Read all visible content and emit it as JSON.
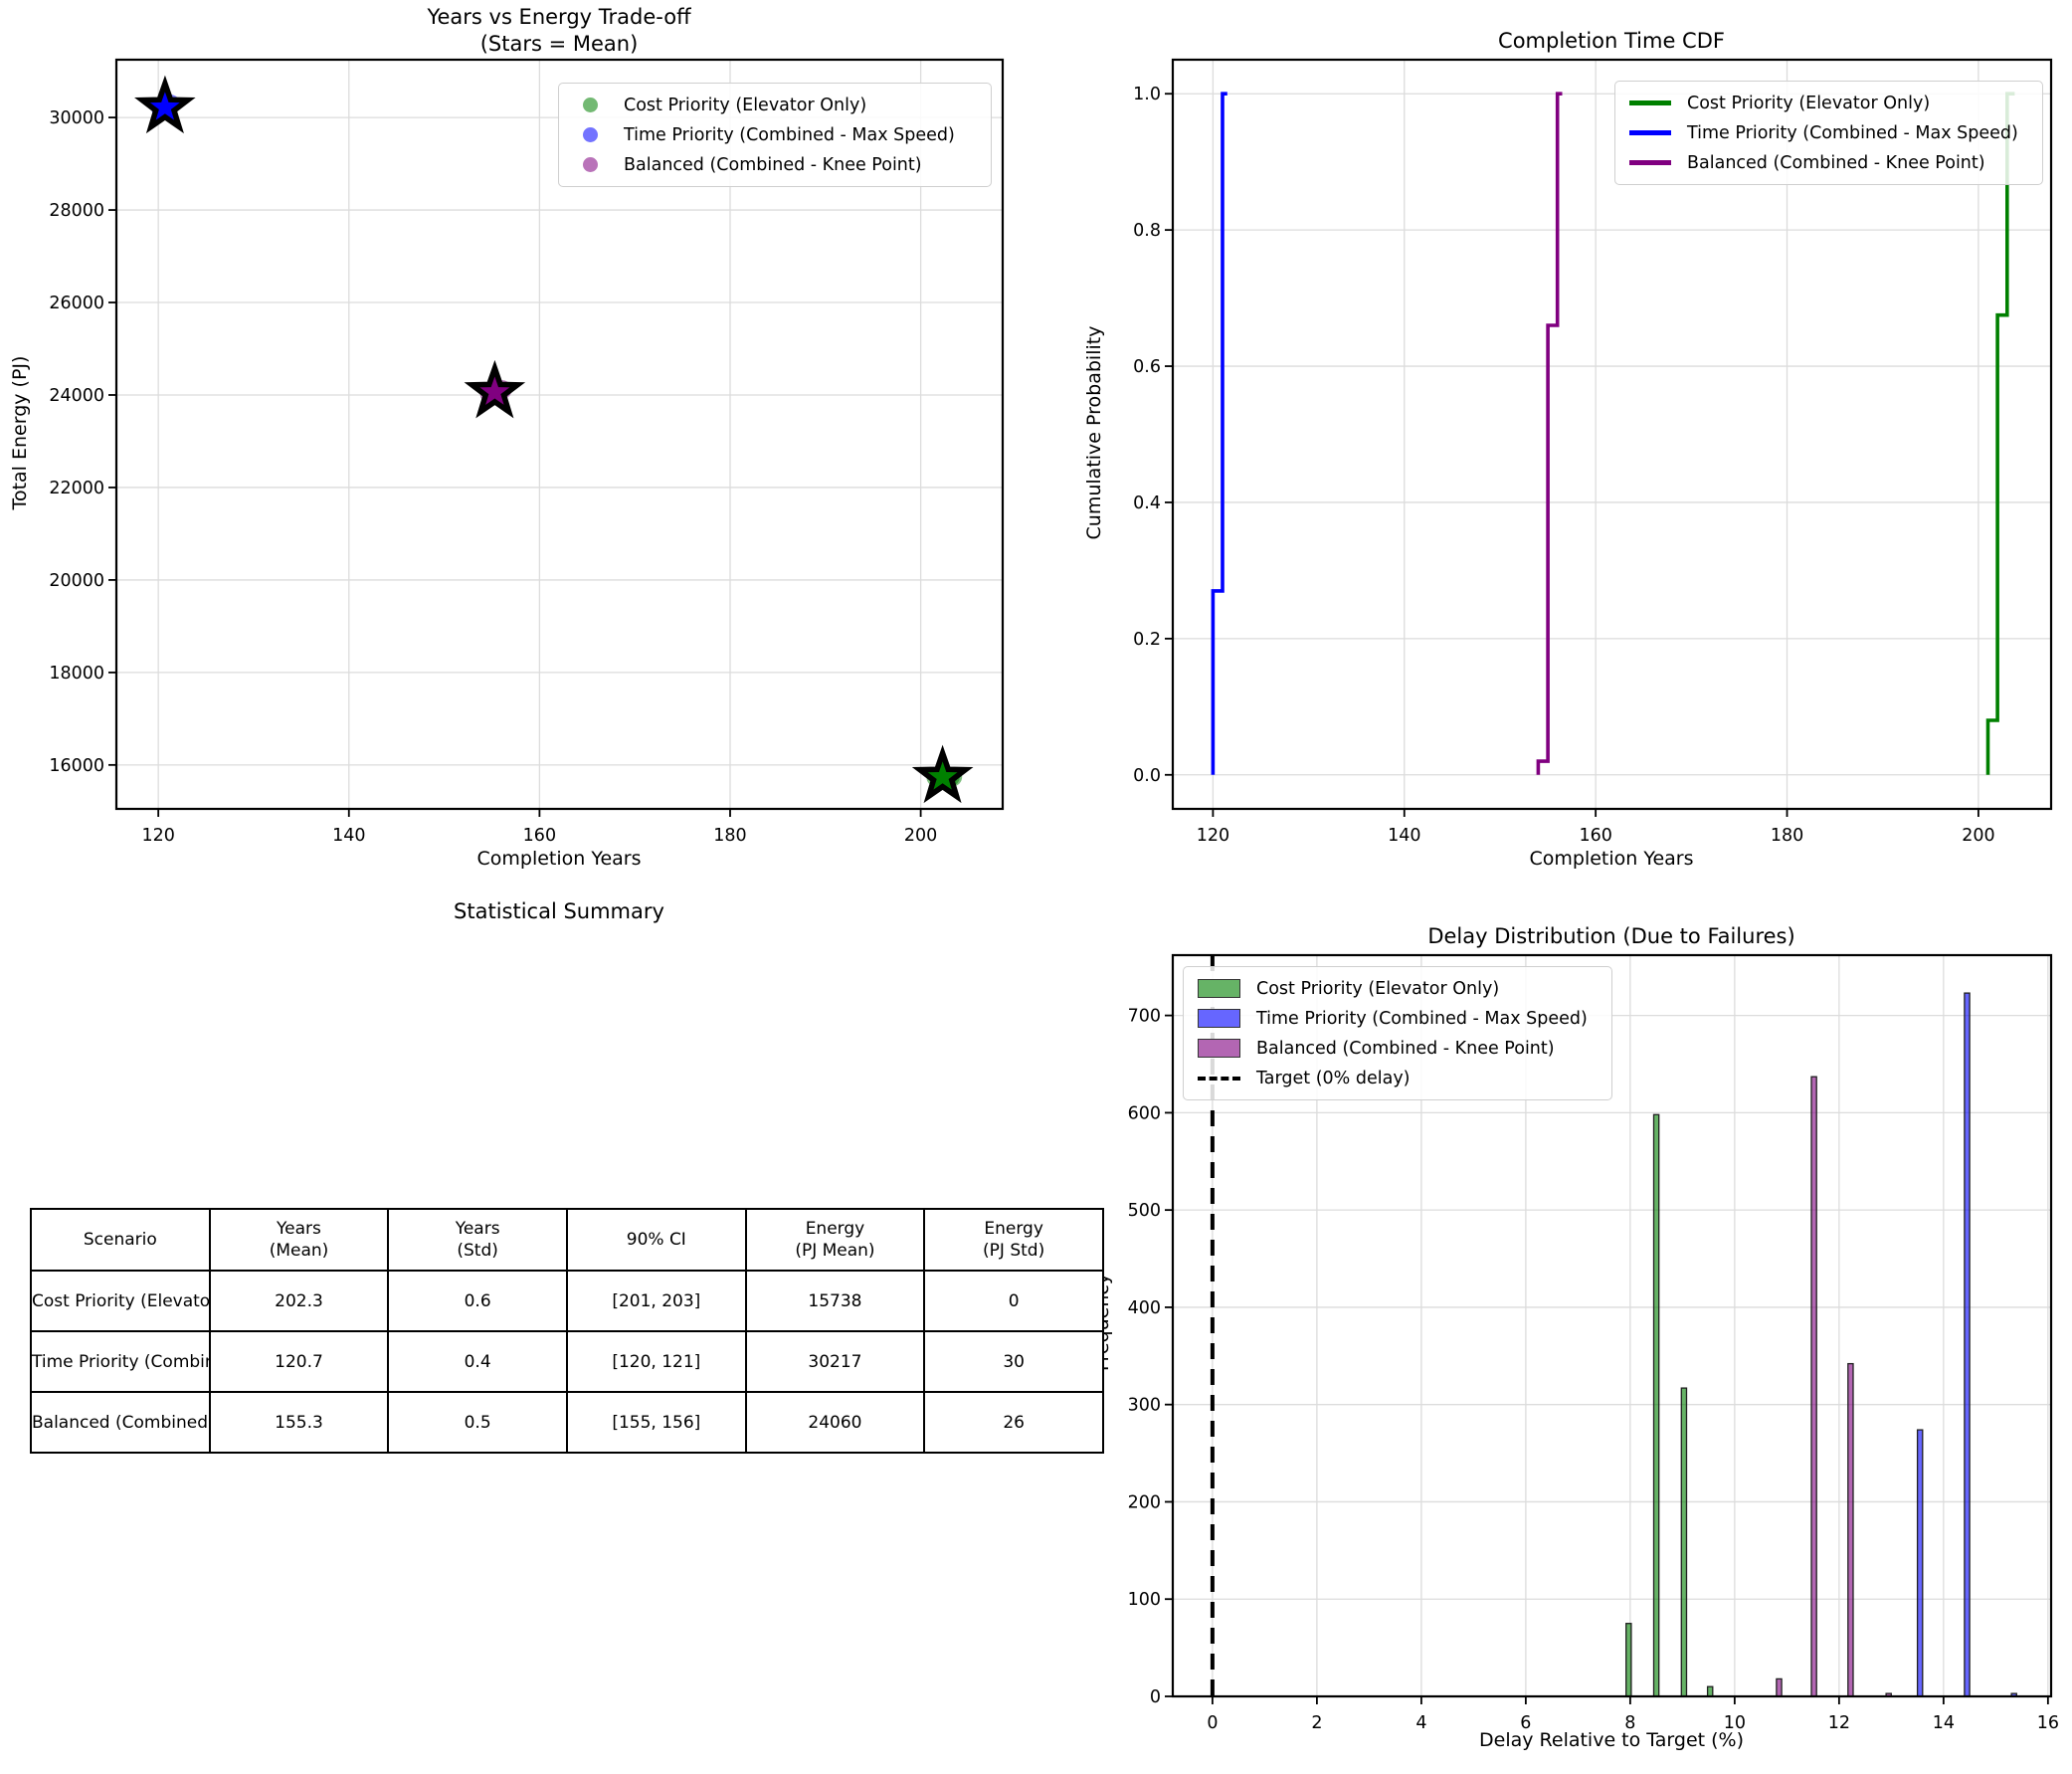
{
  "figure": {
    "background": "#ffffff"
  },
  "colors": {
    "cost_green": "#008000",
    "time_blue": "#0000ff",
    "balanced_purple": "#800080",
    "grid": "#dcdcdc",
    "target_black": "#000000"
  },
  "chart_data": [
    {
      "type": "scatter",
      "title_lines": [
        "Years vs Energy Trade-off",
        "(Stars = Mean)"
      ],
      "xlabel": "Completion Years",
      "ylabel": "Total Energy (PJ)",
      "xlim": [
        115.6,
        208.6
      ],
      "ylim": [
        15050,
        31250
      ],
      "xticks": [
        120,
        140,
        160,
        180,
        200
      ],
      "xtick_labels": [
        "120",
        "140",
        "160",
        "180",
        "200"
      ],
      "yticks": [
        16000,
        18000,
        20000,
        22000,
        24000,
        26000,
        28000,
        30000
      ],
      "ytick_labels": [
        "16000",
        "18000",
        "20000",
        "22000",
        "24000",
        "26000",
        "28000",
        "30000"
      ],
      "grid": true,
      "legend_position": "upper right",
      "marker_note": "circles = samples (alpha), stars = mean",
      "series": [
        {
          "name": "Cost Priority (Elevator Only)",
          "color": "#008000",
          "mean": [
            202.3,
            15738
          ],
          "points": [
            [
              201.6,
              15736
            ],
            [
              201.85,
              15740
            ],
            [
              202.0,
              15738
            ],
            [
              202.15,
              15735
            ],
            [
              202.3,
              15738
            ],
            [
              202.45,
              15741
            ],
            [
              202.6,
              15737
            ],
            [
              202.85,
              15739
            ],
            [
              203.1,
              15738
            ],
            [
              203.35,
              15740
            ]
          ]
        },
        {
          "name": "Time Priority (Combined - Max Speed)",
          "color": "#0000ff",
          "mean": [
            120.7,
            30217
          ],
          "points": [
            [
              120.3,
              30170
            ],
            [
              120.45,
              30200
            ],
            [
              120.55,
              30230
            ],
            [
              120.65,
              30190
            ],
            [
              120.7,
              30220
            ],
            [
              120.8,
              30245
            ],
            [
              120.9,
              30205
            ],
            [
              121.0,
              30235
            ],
            [
              121.1,
              30215
            ],
            [
              121.3,
              30290
            ]
          ]
        },
        {
          "name": "Balanced (Combined - Knee Point)",
          "color": "#800080",
          "mean": [
            155.3,
            24060
          ],
          "points": [
            [
              154.75,
              24025
            ],
            [
              154.95,
              24050
            ],
            [
              155.1,
              24075
            ],
            [
              155.2,
              24040
            ],
            [
              155.3,
              24060
            ],
            [
              155.4,
              24090
            ],
            [
              155.5,
              24050
            ],
            [
              155.65,
              24070
            ],
            [
              155.8,
              24080
            ],
            [
              156.1,
              24115
            ]
          ]
        }
      ]
    },
    {
      "type": "line",
      "title": "Completion Time CDF",
      "xlabel": "Completion Years",
      "ylabel": "Cumulative Probability",
      "xlim": [
        115.8,
        207.6
      ],
      "ylim": [
        -0.05,
        1.05
      ],
      "xticks": [
        120,
        140,
        160,
        180,
        200
      ],
      "xtick_labels": [
        "120",
        "140",
        "160",
        "180",
        "200"
      ],
      "yticks": [
        0.0,
        0.2,
        0.4,
        0.6,
        0.8,
        1.0
      ],
      "ytick_labels": [
        "0.0",
        "0.2",
        "0.4",
        "0.6",
        "0.8",
        "1.0"
      ],
      "grid": true,
      "legend_position": "upper right",
      "series": [
        {
          "name": "Cost Priority (Elevator Only)",
          "color": "#008000",
          "steps": [
            [
              201,
              0
            ],
            [
              201,
              0.08
            ],
            [
              202,
              0.08
            ],
            [
              202,
              0.675
            ],
            [
              203,
              0.675
            ],
            [
              203,
              1.0
            ],
            [
              203.8,
              1.0
            ]
          ]
        },
        {
          "name": "Time Priority (Combined - Max Speed)",
          "color": "#0000ff",
          "steps": [
            [
              120,
              0
            ],
            [
              120,
              0.27
            ],
            [
              121,
              0.27
            ],
            [
              121,
              1.0
            ],
            [
              121.5,
              1.0
            ]
          ]
        },
        {
          "name": "Balanced (Combined - Knee Point)",
          "color": "#800080",
          "steps": [
            [
              154,
              0
            ],
            [
              154,
              0.02
            ],
            [
              155,
              0.02
            ],
            [
              155,
              0.66
            ],
            [
              156,
              0.66
            ],
            [
              156,
              1.0
            ],
            [
              156.5,
              1.0
            ]
          ]
        }
      ]
    },
    {
      "type": "table",
      "title": "Statistical Summary",
      "columns": [
        "Scenario",
        "Years\n(Mean)",
        "Years\n(Std)",
        "90% CI",
        "Energy\n(PJ Mean)",
        "Energy\n(PJ Std)"
      ],
      "rows": [
        [
          "Cost Priority (Elevator Only)",
          "202.3",
          "0.6",
          "[201, 203]",
          "15738",
          "0"
        ],
        [
          "Time Priority (Combined - Max Speed)",
          "120.7",
          "0.4",
          "[120, 121]",
          "30217",
          "30"
        ],
        [
          "Balanced (Combined - Knee Point)",
          "155.3",
          "0.5",
          "[155, 156]",
          "24060",
          "26"
        ]
      ]
    },
    {
      "type": "bar",
      "title": "Delay Distribution (Due to Failures)",
      "xlabel": "Delay Relative to Target (%)",
      "ylabel": "Frequency",
      "xlim": [
        -0.76,
        16.06
      ],
      "ylim": [
        0,
        762
      ],
      "xticks": [
        0,
        2,
        4,
        6,
        8,
        10,
        12,
        14,
        16
      ],
      "xtick_labels": [
        "0",
        "2",
        "4",
        "6",
        "8",
        "10",
        "12",
        "14",
        "16"
      ],
      "yticks": [
        0,
        100,
        200,
        300,
        400,
        500,
        600,
        700
      ],
      "ytick_labels": [
        "0",
        "100",
        "200",
        "300",
        "400",
        "500",
        "600",
        "700"
      ],
      "grid": true,
      "legend_position": "upper left",
      "bar_width": 0.1,
      "series": [
        {
          "name": "Cost Priority (Elevator Only)",
          "color": "#008000",
          "bars": [
            [
              7.97,
              75
            ],
            [
              8.5,
              598
            ],
            [
              9.03,
              317
            ],
            [
              9.53,
              10
            ]
          ]
        },
        {
          "name": "Time Priority (Combined - Max Speed)",
          "color": "#0000ff",
          "bars": [
            [
              13.55,
              274
            ],
            [
              14.45,
              723
            ],
            [
              15.35,
              3
            ]
          ]
        },
        {
          "name": "Balanced (Combined - Knee Point)",
          "color": "#800080",
          "bars": [
            [
              10.85,
              18
            ],
            [
              11.52,
              637
            ],
            [
              12.22,
              342
            ],
            [
              12.95,
              3
            ]
          ]
        }
      ],
      "target": {
        "label": "Target (0% delay)",
        "x": 0,
        "style": "dashed",
        "color": "#000000"
      }
    }
  ]
}
